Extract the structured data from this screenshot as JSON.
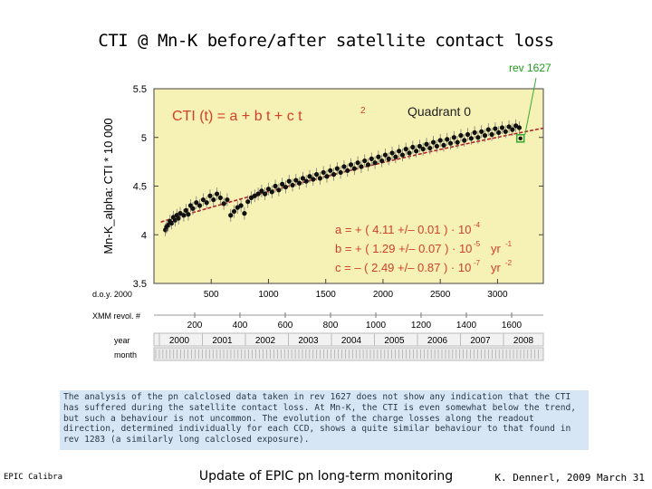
{
  "slide": {
    "title": "CTI @ Mn-K before/after satellite contact loss",
    "rev_label": "rev 1627",
    "text": "The analysis of the pn calclosed data taken in rev 1627 does not show any indication that the CTI has suffered during the satellite contact loss. At Mn-K, the CTI is even somewhat below the trend, but such a behaviour is not uncommon. The evolution of the charge losses along the readout direction, determined individually for each CCD, shows a quite similar behaviour to that found in rev 1283 (a similarly long calclosed exposure).",
    "footer_left": "EPIC Calibra",
    "footer_center": "Update of EPIC pn long-term monitoring",
    "footer_right": "K. Dennerl, 2009 March 31"
  },
  "colors": {
    "plot_bg": "#f6f1b4",
    "fit_line": "#b0242a",
    "formula_red": "#d2402a",
    "highlight_green": "#39a935",
    "text_box_bg": "#d6e6f5"
  },
  "chart_data": {
    "type": "scatter",
    "title": "",
    "ylabel": "Mn-K_alpha:  CTI * 10 000",
    "xlabel": "d.o.y. 2000",
    "ylim": [
      3.5,
      5.5
    ],
    "xlim": [
      0,
      3400
    ],
    "yticks": [
      "3.5",
      "4",
      "4.5",
      "5",
      "5.5"
    ],
    "xticks": [
      "500",
      "1000",
      "1500",
      "2000",
      "2500",
      "3000"
    ],
    "formula": "CTI (t)  =  a + b t + c t",
    "formula_sup": "2",
    "quadrant_label": "Quadrant 0",
    "coefficients": [
      {
        "name": "a",
        "sign": "+",
        "value": "( 4.11 +/– 0.01 ) · 10",
        "exp": "-4",
        "unit": "",
        "unit_exp": ""
      },
      {
        "name": "b",
        "sign": "+",
        "value": "( 1.29 +/– 0.07 ) · 10",
        "exp": "-5",
        "unit": "yr",
        "unit_exp": "-1"
      },
      {
        "name": "c",
        "sign": "–",
        "value": "( 2.49 +/– 0.87 ) · 10",
        "exp": "-7",
        "unit": "yr",
        "unit_exp": "-2"
      }
    ],
    "fit": {
      "a": 4.11,
      "b": 1.29,
      "c": -2.49
    },
    "points": [
      [
        100,
        4.05
      ],
      [
        110,
        4.08
      ],
      [
        125,
        4.1
      ],
      [
        140,
        4.14
      ],
      [
        155,
        4.12
      ],
      [
        170,
        4.18
      ],
      [
        185,
        4.15
      ],
      [
        200,
        4.2
      ],
      [
        215,
        4.17
      ],
      [
        230,
        4.22
      ],
      [
        260,
        4.2
      ],
      [
        280,
        4.25
      ],
      [
        300,
        4.21
      ],
      [
        320,
        4.3
      ],
      [
        340,
        4.27
      ],
      [
        370,
        4.33
      ],
      [
        400,
        4.3
      ],
      [
        430,
        4.36
      ],
      [
        460,
        4.33
      ],
      [
        490,
        4.4
      ],
      [
        520,
        4.36
      ],
      [
        550,
        4.42
      ],
      [
        580,
        4.38
      ],
      [
        610,
        4.32
      ],
      [
        640,
        4.36
      ],
      [
        670,
        4.2
      ],
      [
        700,
        4.24
      ],
      [
        730,
        4.28
      ],
      [
        760,
        4.3
      ],
      [
        790,
        4.22
      ],
      [
        820,
        4.34
      ],
      [
        850,
        4.38
      ],
      [
        880,
        4.4
      ],
      [
        910,
        4.42
      ],
      [
        940,
        4.45
      ],
      [
        970,
        4.42
      ],
      [
        1000,
        4.47
      ],
      [
        1030,
        4.44
      ],
      [
        1060,
        4.5
      ],
      [
        1090,
        4.46
      ],
      [
        1120,
        4.52
      ],
      [
        1150,
        4.49
      ],
      [
        1180,
        4.55
      ],
      [
        1210,
        4.51
      ],
      [
        1240,
        4.56
      ],
      [
        1270,
        4.53
      ],
      [
        1300,
        4.58
      ],
      [
        1330,
        4.55
      ],
      [
        1360,
        4.6
      ],
      [
        1390,
        4.57
      ],
      [
        1420,
        4.62
      ],
      [
        1450,
        4.58
      ],
      [
        1480,
        4.64
      ],
      [
        1510,
        4.6
      ],
      [
        1540,
        4.66
      ],
      [
        1570,
        4.62
      ],
      [
        1600,
        4.68
      ],
      [
        1630,
        4.64
      ],
      [
        1660,
        4.7
      ],
      [
        1690,
        4.66
      ],
      [
        1720,
        4.72
      ],
      [
        1750,
        4.68
      ],
      [
        1780,
        4.74
      ],
      [
        1810,
        4.7
      ],
      [
        1840,
        4.76
      ],
      [
        1870,
        4.72
      ],
      [
        1900,
        4.78
      ],
      [
        1930,
        4.74
      ],
      [
        1960,
        4.8
      ],
      [
        1990,
        4.76
      ],
      [
        2020,
        4.82
      ],
      [
        2050,
        4.78
      ],
      [
        2080,
        4.84
      ],
      [
        2110,
        4.8
      ],
      [
        2140,
        4.86
      ],
      [
        2170,
        4.82
      ],
      [
        2200,
        4.88
      ],
      [
        2230,
        4.84
      ],
      [
        2260,
        4.9
      ],
      [
        2290,
        4.86
      ],
      [
        2320,
        4.91
      ],
      [
        2350,
        4.88
      ],
      [
        2380,
        4.93
      ],
      [
        2410,
        4.89
      ],
      [
        2440,
        4.95
      ],
      [
        2470,
        4.91
      ],
      [
        2500,
        4.97
      ],
      [
        2530,
        4.92
      ],
      [
        2560,
        4.98
      ],
      [
        2590,
        4.94
      ],
      [
        2620,
        5.0
      ],
      [
        2650,
        4.95
      ],
      [
        2680,
        5.02
      ],
      [
        2710,
        4.97
      ],
      [
        2740,
        5.03
      ],
      [
        2770,
        4.99
      ],
      [
        2800,
        5.05
      ],
      [
        2830,
        5.0
      ],
      [
        2860,
        5.06
      ],
      [
        2890,
        5.02
      ],
      [
        2920,
        5.08
      ],
      [
        2950,
        5.03
      ],
      [
        2980,
        5.09
      ],
      [
        3010,
        5.05
      ],
      [
        3040,
        5.1
      ],
      [
        3070,
        5.06
      ],
      [
        3100,
        5.11
      ],
      [
        3130,
        5.08
      ],
      [
        3160,
        5.12
      ],
      [
        3190,
        5.1
      ]
    ],
    "highlight_point": [
      3200,
      4.99
    ],
    "rev_axis": {
      "label": "XMM revol. #",
      "ticks": [
        "200",
        "400",
        "600",
        "800",
        "1000",
        "1200",
        "1400",
        "1600"
      ]
    },
    "year_axis": {
      "label": "year",
      "ticks": [
        "2000",
        "2001",
        "2002",
        "2003",
        "2004",
        "2005",
        "2006",
        "2007",
        "2008"
      ]
    },
    "month_axis": {
      "label": "month"
    }
  }
}
